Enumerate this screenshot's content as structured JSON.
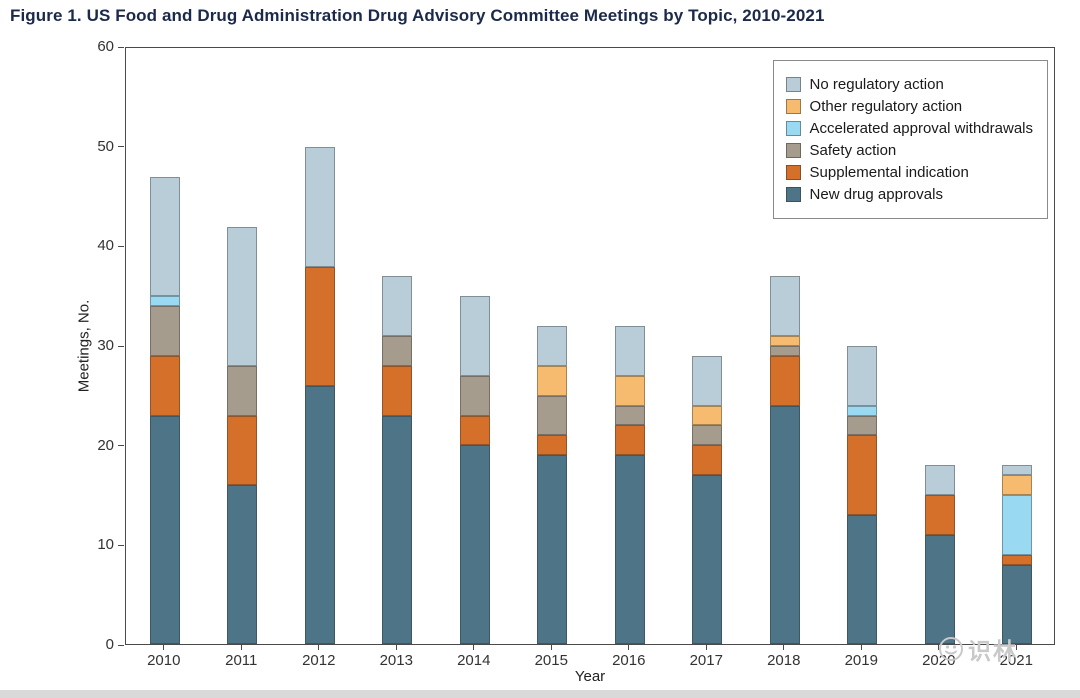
{
  "figure": {
    "title": "Figure 1.  US Food and Drug Administration Drug Advisory Committee Meetings by Topic, 2010-2021"
  },
  "watermark": {
    "text": "识林"
  },
  "chart_data": {
    "type": "bar",
    "stacked": true,
    "title": "US Food and Drug Administration Drug Advisory Committee Meetings by Topic, 2010-2021",
    "xlabel": "Year",
    "ylabel": "Meetings, No.",
    "ylim": [
      0,
      60
    ],
    "yticks": [
      0,
      10,
      20,
      30,
      40,
      50,
      60
    ],
    "grid": false,
    "categories": [
      "2010",
      "2011",
      "2012",
      "2013",
      "2014",
      "2015",
      "2016",
      "2017",
      "2018",
      "2019",
      "2020",
      "2021"
    ],
    "series": [
      {
        "name": "New drug approvals",
        "color": "#4d7587",
        "values": [
          23,
          16,
          26,
          23,
          20,
          19,
          19,
          17,
          24,
          13,
          11,
          8
        ]
      },
      {
        "name": "Supplemental indication",
        "color": "#d4702a",
        "values": [
          6,
          7,
          12,
          5,
          3,
          2,
          3,
          3,
          5,
          8,
          4,
          1
        ]
      },
      {
        "name": "Safety action",
        "color": "#a69c8d",
        "values": [
          5,
          5,
          0,
          3,
          4,
          4,
          2,
          2,
          1,
          2,
          0,
          0
        ]
      },
      {
        "name": "Accelerated approval withdrawals",
        "color": "#99daf2",
        "values": [
          1,
          0,
          0,
          0,
          0,
          0,
          0,
          0,
          0,
          1,
          0,
          6
        ]
      },
      {
        "name": "Other regulatory action",
        "color": "#f6bb6e",
        "values": [
          0,
          0,
          0,
          0,
          0,
          3,
          3,
          2,
          1,
          0,
          0,
          2
        ]
      },
      {
        "name": "No regulatory action",
        "color": "#b9cdd9",
        "values": [
          12,
          14,
          12,
          6,
          8,
          4,
          5,
          5,
          6,
          6,
          3,
          1
        ]
      }
    ],
    "totals": [
      47,
      42,
      50,
      37,
      35,
      32,
      32,
      29,
      37,
      30,
      18,
      18
    ],
    "legend": {
      "position": "top-right",
      "order_top_to_bottom": [
        "No regulatory action",
        "Other regulatory action",
        "Accelerated approval withdrawals",
        "Safety action",
        "Supplemental indication",
        "New drug approvals"
      ]
    }
  }
}
